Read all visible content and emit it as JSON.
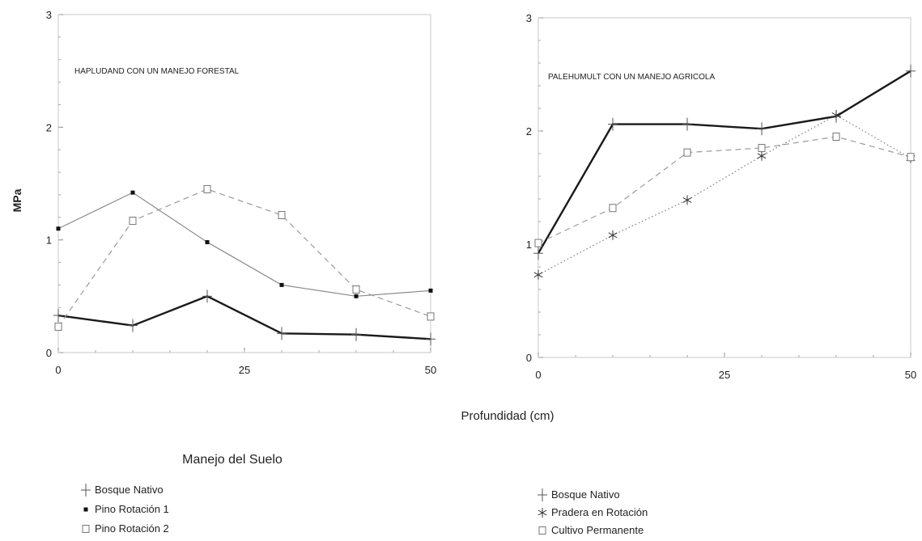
{
  "figure": {
    "xlabel": "Profundidad (cm)",
    "ylabel": "MPa",
    "legend_title": "Manejo del Suelo"
  },
  "chart_data": [
    {
      "type": "line",
      "annotation": "HAPLUDAND CON UN MANEJO FORESTAL",
      "xlabel": "Profundidad (cm)",
      "ylabel": "MPa",
      "xlim": [
        0,
        50
      ],
      "ylim": [
        0,
        3
      ],
      "xticks": [
        "0",
        "25",
        "50"
      ],
      "yticks": [
        "0",
        "1",
        "2",
        "3"
      ],
      "grid": false,
      "series": [
        {
          "name": "Bosque Nativo",
          "marker": "plus",
          "style": "solid-bold",
          "color": "#1a1a1a",
          "x": [
            0,
            10,
            20,
            30,
            40,
            50
          ],
          "y": [
            0.33,
            0.24,
            0.5,
            0.17,
            0.16,
            0.12
          ]
        },
        {
          "name": "Pino Rotación 1",
          "marker": "filled-square",
          "style": "solid-thin",
          "color": "#8a8a8a",
          "x": [
            0,
            10,
            20,
            30,
            40,
            50
          ],
          "y": [
            1.1,
            1.42,
            0.98,
            0.6,
            0.5,
            0.55
          ]
        },
        {
          "name": "Pino Rotación 2",
          "marker": "open-square",
          "style": "dashed",
          "color": "#9a9a9a",
          "x": [
            0,
            10,
            20,
            30,
            40,
            50
          ],
          "y": [
            0.23,
            1.17,
            1.45,
            1.22,
            0.56,
            0.32
          ]
        }
      ]
    },
    {
      "type": "line",
      "annotation": "PALEHUMULT CON UN MANEJO AGRICOLA",
      "xlabel": "Profundidad (cm)",
      "ylabel": "MPa",
      "xlim": [
        0,
        50
      ],
      "ylim": [
        0,
        3
      ],
      "xticks": [
        "0",
        "25",
        "50"
      ],
      "yticks": [
        "0",
        "1",
        "2",
        "3"
      ],
      "grid": false,
      "series": [
        {
          "name": "Bosque Nativo",
          "marker": "plus",
          "style": "solid-bold",
          "color": "#1a1a1a",
          "x": [
            0,
            10,
            20,
            30,
            40,
            50
          ],
          "y": [
            0.92,
            2.06,
            2.06,
            2.02,
            2.13,
            2.53
          ]
        },
        {
          "name": "Pradera en Rotación",
          "marker": "asterisk",
          "style": "dotted",
          "color": "#7a7a7a",
          "x": [
            0,
            10,
            20,
            30,
            40,
            50
          ],
          "y": [
            0.73,
            1.08,
            1.39,
            1.78,
            2.14,
            1.76
          ]
        },
        {
          "name": "Cultivo Permanente",
          "marker": "open-square",
          "style": "dashed",
          "color": "#9a9a9a",
          "x": [
            0,
            10,
            20,
            30,
            40,
            50
          ],
          "y": [
            1.01,
            1.32,
            1.81,
            1.85,
            1.95,
            1.77
          ]
        }
      ]
    }
  ]
}
